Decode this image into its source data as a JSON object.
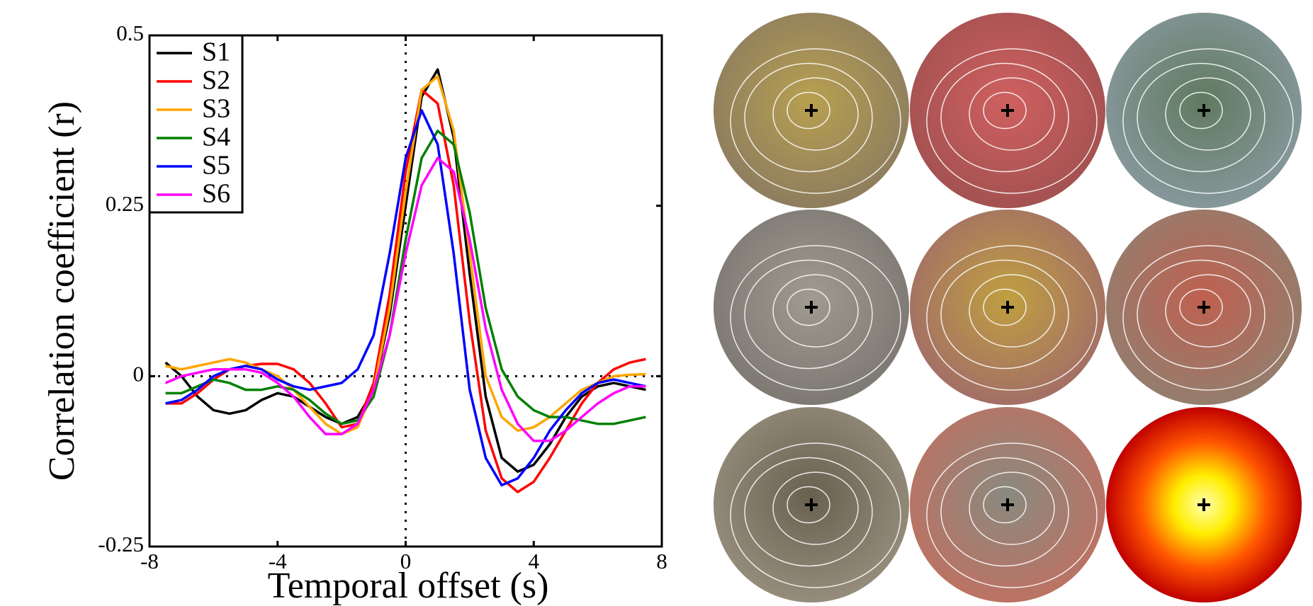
{
  "chart_data": {
    "type": "line",
    "x_label": "Temporal offset (s)",
    "y_label": "Correlation coefficient (r)",
    "x": [
      -7.5,
      -7,
      -6.5,
      -6,
      -5.5,
      -5,
      -4.5,
      -4,
      -3.5,
      -3,
      -2.5,
      -2,
      -1.5,
      -1,
      -0.5,
      0,
      0.5,
      1,
      1.5,
      2,
      2.5,
      3,
      3.5,
      4,
      4.5,
      5,
      5.5,
      6,
      6.5,
      7,
      7.5
    ],
    "series": [
      {
        "name": "S1",
        "color": "#000000",
        "values": [
          0.02,
          0.0,
          -0.03,
          -0.05,
          -0.055,
          -0.05,
          -0.035,
          -0.025,
          -0.03,
          -0.045,
          -0.06,
          -0.07,
          -0.06,
          -0.02,
          0.09,
          0.25,
          0.41,
          0.45,
          0.35,
          0.15,
          -0.03,
          -0.12,
          -0.14,
          -0.13,
          -0.1,
          -0.06,
          -0.03,
          -0.015,
          -0.01,
          -0.015,
          -0.02
        ]
      },
      {
        "name": "S2",
        "color": "#ff0000",
        "values": [
          -0.04,
          -0.04,
          -0.025,
          -0.005,
          0.01,
          0.015,
          0.018,
          0.018,
          0.01,
          -0.01,
          -0.04,
          -0.075,
          -0.07,
          -0.01,
          0.12,
          0.3,
          0.42,
          0.4,
          0.28,
          0.08,
          -0.08,
          -0.15,
          -0.17,
          -0.155,
          -0.12,
          -0.08,
          -0.04,
          -0.01,
          0.01,
          0.02,
          0.025
        ]
      },
      {
        "name": "S3",
        "color": "#ffa500",
        "values": [
          0.015,
          0.01,
          0.015,
          0.02,
          0.025,
          0.02,
          0.01,
          0.0,
          -0.02,
          -0.045,
          -0.07,
          -0.085,
          -0.075,
          -0.02,
          0.1,
          0.27,
          0.42,
          0.44,
          0.36,
          0.18,
          0.0,
          -0.06,
          -0.08,
          -0.075,
          -0.06,
          -0.04,
          -0.02,
          -0.01,
          0.0,
          0.002,
          0.003
        ]
      },
      {
        "name": "S4",
        "color": "#008000",
        "values": [
          -0.025,
          -0.025,
          -0.015,
          -0.005,
          -0.01,
          -0.02,
          -0.02,
          -0.015,
          -0.02,
          -0.035,
          -0.055,
          -0.07,
          -0.065,
          -0.03,
          0.06,
          0.2,
          0.32,
          0.36,
          0.34,
          0.24,
          0.1,
          0.01,
          -0.03,
          -0.05,
          -0.06,
          -0.06,
          -0.065,
          -0.07,
          -0.07,
          -0.065,
          -0.06
        ]
      },
      {
        "name": "S5",
        "color": "#0000ff",
        "values": [
          -0.04,
          -0.035,
          -0.02,
          0.0,
          0.01,
          0.015,
          0.01,
          -0.005,
          -0.015,
          -0.02,
          -0.015,
          -0.01,
          0.01,
          0.06,
          0.18,
          0.32,
          0.39,
          0.34,
          0.18,
          -0.02,
          -0.12,
          -0.16,
          -0.15,
          -0.12,
          -0.08,
          -0.05,
          -0.025,
          -0.01,
          -0.005,
          -0.01,
          -0.015
        ]
      },
      {
        "name": "S6",
        "color": "#ff00ff",
        "values": [
          -0.01,
          0.0,
          0.005,
          0.01,
          0.01,
          0.01,
          0.005,
          -0.01,
          -0.03,
          -0.06,
          -0.085,
          -0.085,
          -0.07,
          -0.02,
          0.06,
          0.18,
          0.28,
          0.32,
          0.3,
          0.2,
          0.07,
          -0.02,
          -0.07,
          -0.095,
          -0.095,
          -0.08,
          -0.06,
          -0.04,
          -0.025,
          -0.015,
          -0.015
        ]
      }
    ],
    "xlim": [
      -8,
      8
    ],
    "xticks": [
      -8,
      -4,
      0,
      4,
      8
    ],
    "ylim": [
      -0.25,
      0.5
    ],
    "yticks": [
      -0.25,
      0,
      0.25,
      0.5
    ],
    "zero_lines": true,
    "legend": "upper-left"
  }
}
